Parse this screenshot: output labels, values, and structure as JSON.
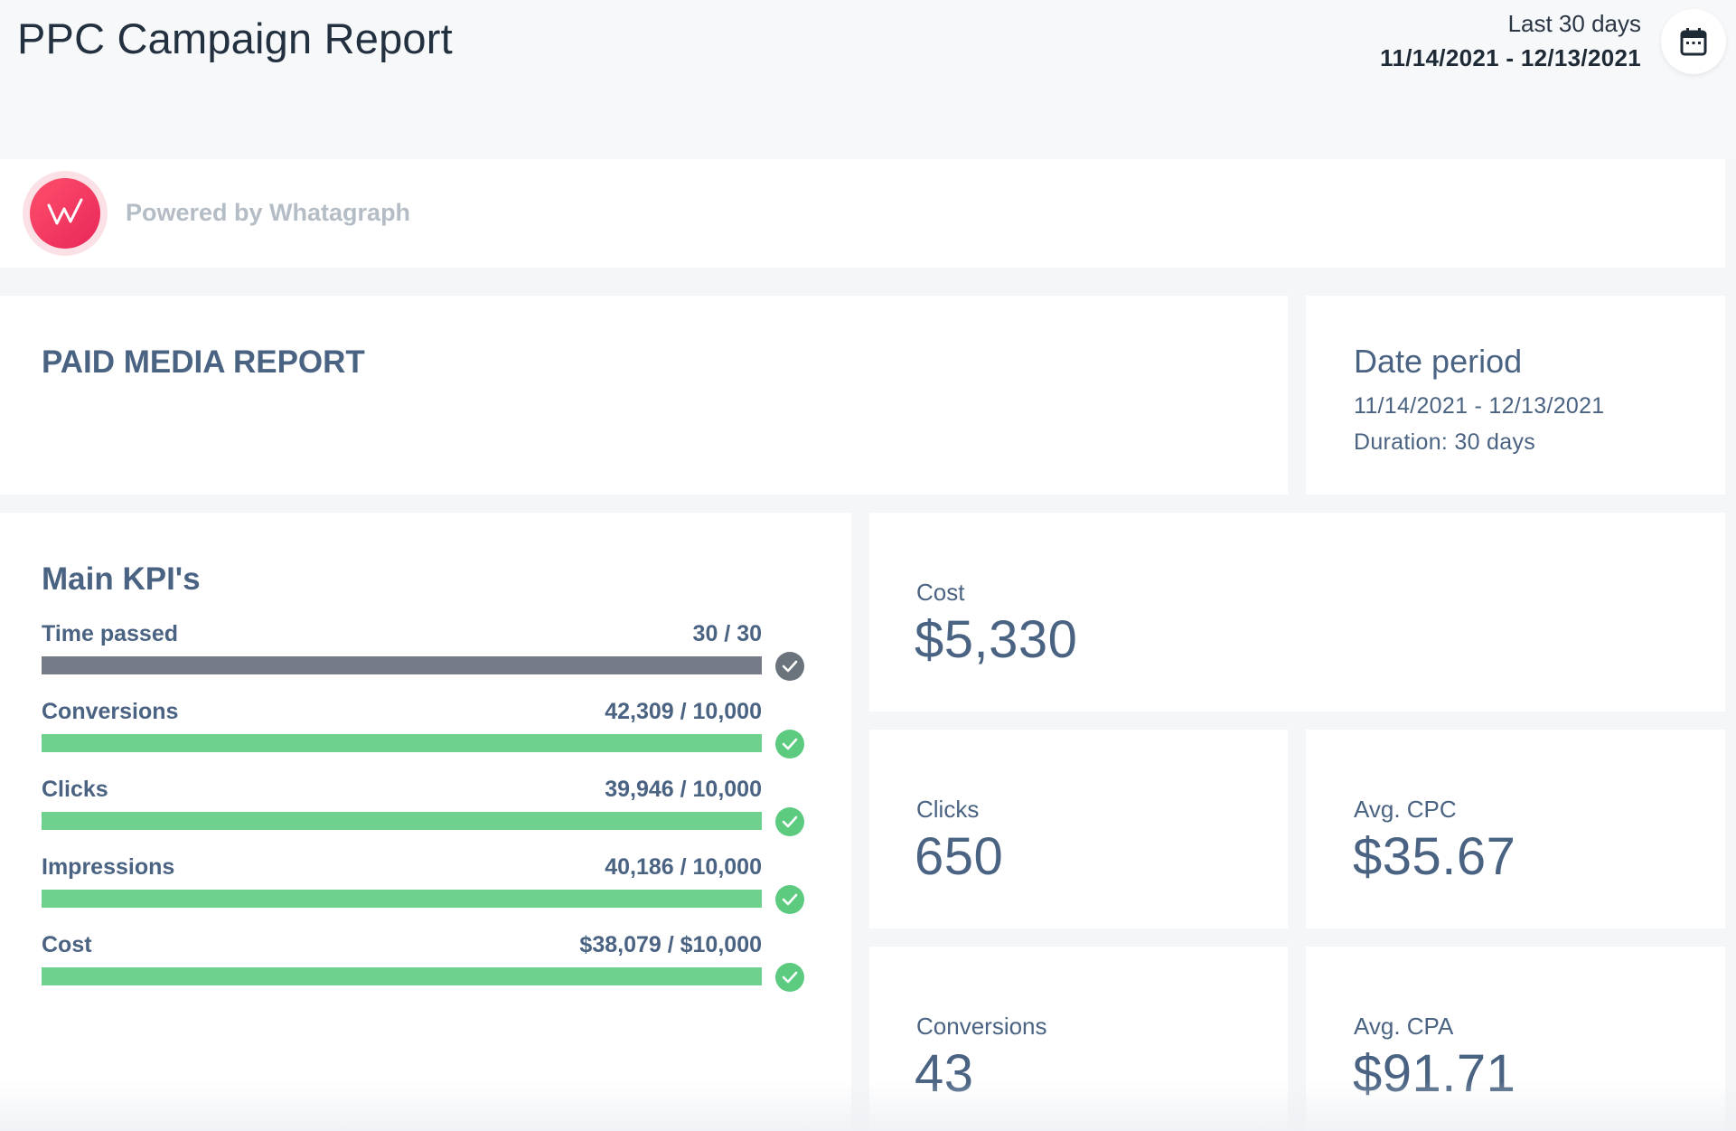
{
  "header": {
    "title": "PPC Campaign Report",
    "range_label": "Last 30 days",
    "range_value": "11/14/2021 - 12/13/2021",
    "calendar_icon": "calendar-icon"
  },
  "branding": {
    "logo_letter": "W",
    "text": "Powered by Whatagraph",
    "logo_color": "#f0355e"
  },
  "report_card": {
    "heading": "PAID MEDIA REPORT"
  },
  "date_period": {
    "heading": "Date period",
    "range": "11/14/2021 - 12/13/2021",
    "duration_label": "Duration:",
    "duration_value": "30 days"
  },
  "kpis": {
    "title": "Main KPI's",
    "items": [
      {
        "label": "Time passed",
        "value": "30 / 30",
        "progress": 1.0,
        "color": "#757c87",
        "check_color": "#6b737d"
      },
      {
        "label": "Conversions",
        "value": "42,309 / 10,000",
        "progress": 1.0,
        "color": "#6ed18e",
        "check_color": "#5ccb80"
      },
      {
        "label": "Clicks",
        "value": "39,946 / 10,000",
        "progress": 1.0,
        "color": "#6ed18e",
        "check_color": "#5ccb80"
      },
      {
        "label": "Impressions",
        "value": "40,186 / 10,000",
        "progress": 1.0,
        "color": "#6ed18e",
        "check_color": "#5ccb80"
      },
      {
        "label": "Cost",
        "value": "$38,079 / $10,000",
        "progress": 1.0,
        "color": "#6ed18e",
        "check_color": "#5ccb80"
      }
    ]
  },
  "metrics": {
    "cost": {
      "label": "Cost",
      "value": "$5,330"
    },
    "clicks": {
      "label": "Clicks",
      "value": "650"
    },
    "avg_cpc": {
      "label": "Avg. CPC",
      "value": "$35.67"
    },
    "conversions": {
      "label": "Conversions",
      "value": "43"
    },
    "avg_cpa": {
      "label": "Avg. CPA",
      "value": "$91.71"
    }
  }
}
